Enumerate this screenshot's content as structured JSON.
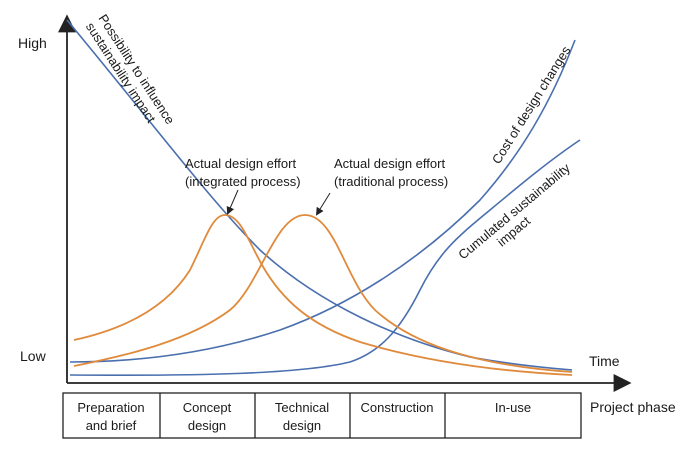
{
  "axes": {
    "y_high": "High",
    "y_low": "Low",
    "x_time": "Time",
    "x_phase": "Project phase"
  },
  "curve_labels": {
    "possibility": [
      "Possibility to influence",
      "sustainability impact"
    ],
    "cost": "Cost of design changes",
    "cumulated": [
      "Cumulated sustainability",
      "impact"
    ],
    "integrated": [
      "Actual design effort",
      "(integrated process)"
    ],
    "traditional": [
      "Actual design effort",
      "(traditional process)"
    ]
  },
  "phases": [
    {
      "lines": [
        "Preparation",
        "and brief"
      ]
    },
    {
      "lines": [
        "Concept",
        "design"
      ]
    },
    {
      "lines": [
        "Technical",
        "design"
      ]
    },
    {
      "lines": [
        "Construction"
      ]
    },
    {
      "lines": [
        "In-use"
      ]
    }
  ],
  "colors": {
    "blue": "#4a6fae",
    "orange": "#e08a3c",
    "axis": "#222222"
  }
}
